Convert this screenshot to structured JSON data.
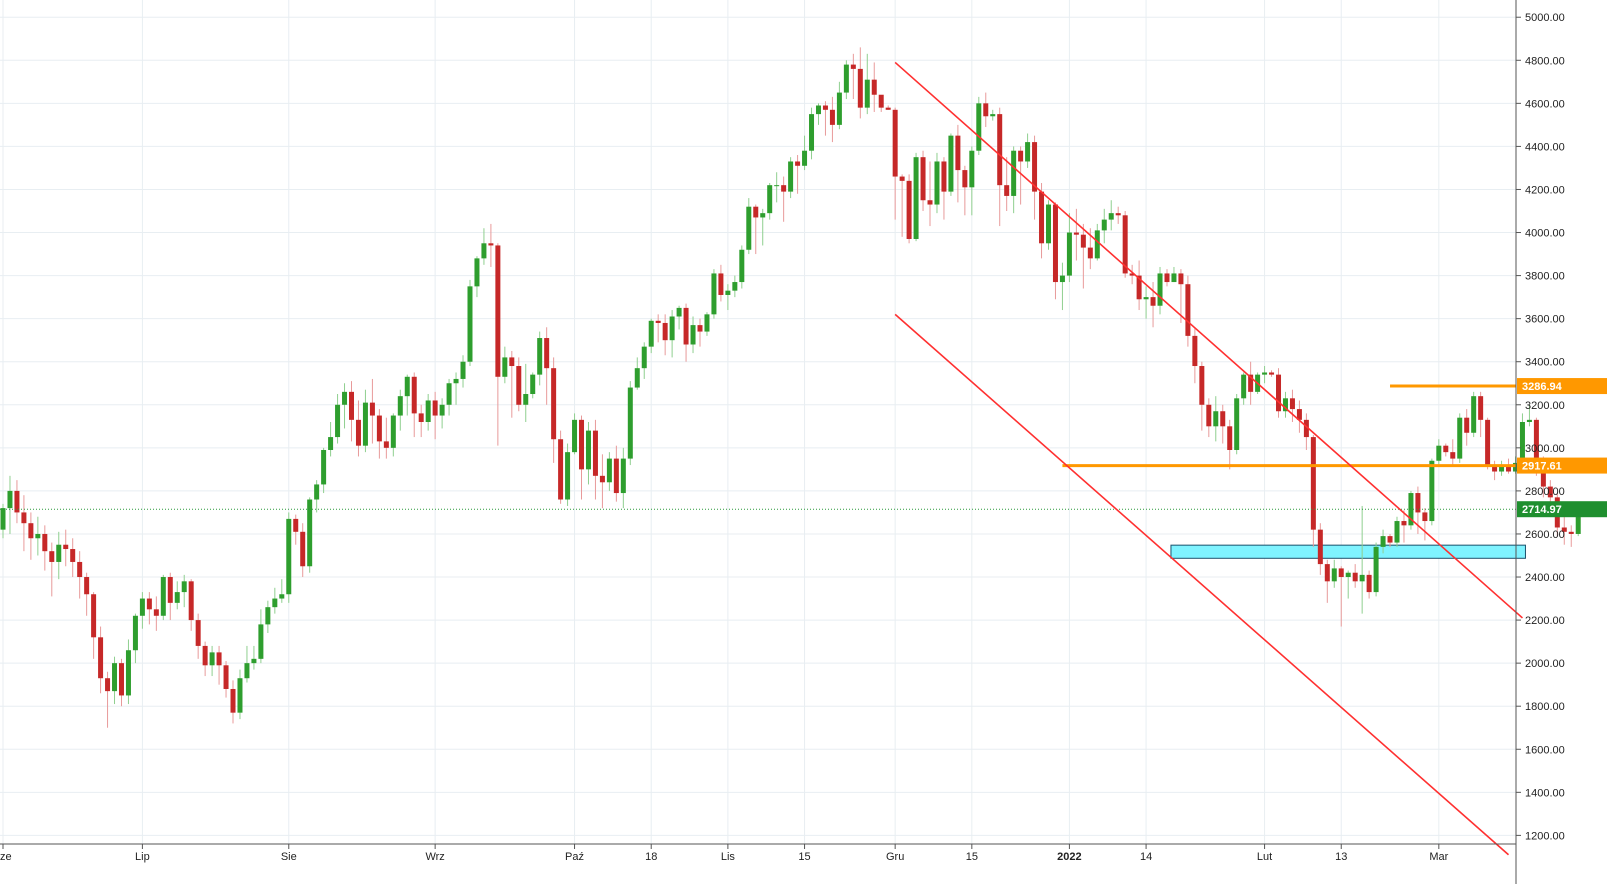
{
  "chart_data": {
    "type": "candlestick",
    "ylim": [
      1160,
      5080
    ],
    "y_ticks": [
      1200,
      1400,
      1600,
      1800,
      2000,
      2200,
      2400,
      2600,
      2800,
      3000,
      3200,
      3400,
      3600,
      3800,
      4000,
      4200,
      4400,
      4600,
      4800,
      5000
    ],
    "y_tick_labels": [
      "1200.00",
      "1400.00",
      "1600.00",
      "1800.00",
      "2000.00",
      "2200.00",
      "2400.00",
      "2600.00",
      "2800.00",
      "3000.00",
      "3200.00",
      "3400.00",
      "3600.00",
      "3800.00",
      "4000.00",
      "4200.00",
      "4400.00",
      "4600.00",
      "4800.00",
      "5000.00"
    ],
    "x_ticks": [
      {
        "label": "ze",
        "bar": 0,
        "bold": false
      },
      {
        "label": "Lip",
        "bar": 20,
        "bold": false
      },
      {
        "label": "Sie",
        "bar": 41,
        "bold": false
      },
      {
        "label": "Wrz",
        "bar": 62,
        "bold": false
      },
      {
        "label": "Paź",
        "bar": 82,
        "bold": false
      },
      {
        "label": "18",
        "bar": 93,
        "bold": false
      },
      {
        "label": "Lis",
        "bar": 104,
        "bold": false
      },
      {
        "label": "15",
        "bar": 115,
        "bold": false
      },
      {
        "label": "Gru",
        "bar": 128,
        "bold": false
      },
      {
        "label": "15",
        "bar": 139,
        "bold": false
      },
      {
        "label": "2022",
        "bar": 153,
        "bold": true
      },
      {
        "label": "14",
        "bar": 164,
        "bold": false
      },
      {
        "label": "Lut",
        "bar": 181,
        "bold": false
      },
      {
        "label": "13",
        "bar": 192,
        "bold": false
      },
      {
        "label": "Mar",
        "bar": 206,
        "bold": false
      }
    ],
    "candles": [
      [
        2620,
        2720,
        2580,
        2740
      ],
      [
        2720,
        2800,
        2600,
        2870
      ],
      [
        2800,
        2700,
        2650,
        2850
      ],
      [
        2700,
        2650,
        2520,
        2780
      ],
      [
        2650,
        2580,
        2480,
        2700
      ],
      [
        2580,
        2600,
        2500,
        2680
      ],
      [
        2600,
        2520,
        2430,
        2640
      ],
      [
        2520,
        2470,
        2310,
        2560
      ],
      [
        2470,
        2550,
        2390,
        2610
      ],
      [
        2550,
        2530,
        2450,
        2620
      ],
      [
        2530,
        2470,
        2400,
        2580
      ],
      [
        2470,
        2400,
        2300,
        2520
      ],
      [
        2400,
        2320,
        2220,
        2420
      ],
      [
        2320,
        2120,
        2020,
        2330
      ],
      [
        2120,
        1930,
        1860,
        2170
      ],
      [
        1930,
        1870,
        1700,
        1960
      ],
      [
        1870,
        2000,
        1810,
        2030
      ],
      [
        2000,
        1850,
        1800,
        2020
      ],
      [
        1850,
        2060,
        1810,
        2110
      ],
      [
        2060,
        2220,
        2000,
        2230
      ],
      [
        2220,
        2300,
        2160,
        2330
      ],
      [
        2300,
        2250,
        2180,
        2330
      ],
      [
        2250,
        2220,
        2150,
        2310
      ],
      [
        2220,
        2400,
        2200,
        2410
      ],
      [
        2400,
        2280,
        2200,
        2420
      ],
      [
        2280,
        2330,
        2250,
        2380
      ],
      [
        2330,
        2380,
        2260,
        2410
      ],
      [
        2380,
        2200,
        2150,
        2390
      ],
      [
        2200,
        2080,
        2020,
        2230
      ],
      [
        2080,
        1990,
        1940,
        2100
      ],
      [
        1990,
        2050,
        1940,
        2080
      ],
      [
        2050,
        1990,
        1900,
        2080
      ],
      [
        1990,
        1880,
        1840,
        2010
      ],
      [
        1880,
        1770,
        1720,
        1920
      ],
      [
        1770,
        1930,
        1740,
        1970
      ],
      [
        1930,
        2000,
        1910,
        2080
      ],
      [
        2000,
        2020,
        1970,
        2080
      ],
      [
        2020,
        2180,
        2000,
        2250
      ],
      [
        2180,
        2260,
        2140,
        2290
      ],
      [
        2260,
        2300,
        2230,
        2350
      ],
      [
        2300,
        2320,
        2280,
        2390
      ],
      [
        2320,
        2670,
        2280,
        2700
      ],
      [
        2670,
        2610,
        2550,
        2690
      ],
      [
        2610,
        2450,
        2400,
        2650
      ],
      [
        2450,
        2760,
        2420,
        2770
      ],
      [
        2760,
        2830,
        2700,
        2850
      ],
      [
        2830,
        2990,
        2790,
        3000
      ],
      [
        2990,
        3050,
        2960,
        3120
      ],
      [
        3050,
        3200,
        3020,
        3250
      ],
      [
        3200,
        3260,
        3090,
        3300
      ],
      [
        3260,
        3130,
        3030,
        3310
      ],
      [
        3130,
        3010,
        2960,
        3220
      ],
      [
        3010,
        3210,
        2980,
        3270
      ],
      [
        3210,
        3150,
        3020,
        3320
      ],
      [
        3150,
        3030,
        2950,
        3180
      ],
      [
        3030,
        3000,
        2950,
        3140
      ],
      [
        3000,
        3150,
        2960,
        3160
      ],
      [
        3150,
        3240,
        3080,
        3270
      ],
      [
        3240,
        3330,
        3150,
        3340
      ],
      [
        3330,
        3160,
        3050,
        3350
      ],
      [
        3160,
        3120,
        3050,
        3200
      ],
      [
        3120,
        3220,
        3080,
        3250
      ],
      [
        3220,
        3150,
        3040,
        3260
      ],
      [
        3150,
        3200,
        3090,
        3230
      ],
      [
        3200,
        3300,
        3150,
        3320
      ],
      [
        3300,
        3320,
        3200,
        3350
      ],
      [
        3320,
        3400,
        3280,
        3430
      ],
      [
        3400,
        3750,
        3380,
        3780
      ],
      [
        3750,
        3880,
        3700,
        3890
      ],
      [
        3880,
        3950,
        3850,
        4020
      ],
      [
        3950,
        3940,
        3840,
        4040
      ],
      [
        3940,
        3330,
        3010,
        3950
      ],
      [
        3330,
        3420,
        3300,
        3470
      ],
      [
        3420,
        3380,
        3140,
        3450
      ],
      [
        3380,
        3200,
        3170,
        3420
      ],
      [
        3200,
        3250,
        3120,
        3390
      ],
      [
        3250,
        3340,
        3230,
        3350
      ],
      [
        3340,
        3510,
        3290,
        3540
      ],
      [
        3510,
        3370,
        3200,
        3560
      ],
      [
        3370,
        3040,
        2930,
        3420
      ],
      [
        3040,
        2760,
        2740,
        3080
      ],
      [
        2760,
        2980,
        2730,
        3020
      ],
      [
        2980,
        3130,
        2970,
        3160
      ],
      [
        3130,
        2900,
        2760,
        3150
      ],
      [
        2900,
        3080,
        2830,
        3120
      ],
      [
        3080,
        2870,
        2760,
        3130
      ],
      [
        2870,
        2840,
        2720,
        2970
      ],
      [
        2840,
        2950,
        2800,
        2980
      ],
      [
        2950,
        2790,
        2750,
        3010
      ],
      [
        2790,
        2950,
        2720,
        3000
      ],
      [
        2950,
        3280,
        2920,
        3310
      ],
      [
        3280,
        3370,
        3270,
        3420
      ],
      [
        3370,
        3470,
        3320,
        3490
      ],
      [
        3470,
        3590,
        3440,
        3600
      ],
      [
        3590,
        3580,
        3490,
        3620
      ],
      [
        3580,
        3500,
        3430,
        3620
      ],
      [
        3500,
        3610,
        3420,
        3640
      ],
      [
        3610,
        3650,
        3550,
        3660
      ],
      [
        3650,
        3480,
        3400,
        3670
      ],
      [
        3480,
        3570,
        3440,
        3610
      ],
      [
        3570,
        3540,
        3470,
        3600
      ],
      [
        3540,
        3620,
        3520,
        3630
      ],
      [
        3620,
        3810,
        3600,
        3830
      ],
      [
        3810,
        3710,
        3680,
        3850
      ],
      [
        3710,
        3730,
        3640,
        3760
      ],
      [
        3730,
        3770,
        3700,
        3800
      ],
      [
        3770,
        3920,
        3740,
        3940
      ],
      [
        3920,
        4120,
        3900,
        4160
      ],
      [
        4120,
        4070,
        3900,
        4130
      ],
      [
        4070,
        4090,
        3940,
        4110
      ],
      [
        4090,
        4220,
        4060,
        4230
      ],
      [
        4220,
        4220,
        4140,
        4280
      ],
      [
        4220,
        4190,
        4050,
        4260
      ],
      [
        4190,
        4330,
        4160,
        4350
      ],
      [
        4330,
        4310,
        4180,
        4360
      ],
      [
        4310,
        4380,
        4290,
        4450
      ],
      [
        4380,
        4550,
        4340,
        4580
      ],
      [
        4550,
        4590,
        4500,
        4600
      ],
      [
        4590,
        4570,
        4450,
        4610
      ],
      [
        4570,
        4500,
        4420,
        4630
      ],
      [
        4500,
        4650,
        4480,
        4700
      ],
      [
        4650,
        4780,
        4620,
        4800
      ],
      [
        4780,
        4760,
        4620,
        4830
      ],
      [
        4760,
        4580,
        4530,
        4860
      ],
      [
        4580,
        4710,
        4550,
        4830
      ],
      [
        4710,
        4640,
        4560,
        4790
      ],
      [
        4640,
        4580,
        4560,
        4630
      ],
      [
        4580,
        4570,
        4570,
        4590
      ],
      [
        4570,
        4260,
        4060,
        4580
      ],
      [
        4260,
        4240,
        3980,
        4270
      ],
      [
        4240,
        3970,
        3950,
        4270
      ],
      [
        3970,
        4350,
        3960,
        4370
      ],
      [
        4350,
        4150,
        4100,
        4380
      ],
      [
        4150,
        4130,
        4030,
        4330
      ],
      [
        4130,
        4330,
        4090,
        4370
      ],
      [
        4330,
        4190,
        4060,
        4350
      ],
      [
        4190,
        4450,
        4170,
        4460
      ],
      [
        4450,
        4290,
        4140,
        4500
      ],
      [
        4290,
        4210,
        4080,
        4310
      ],
      [
        4210,
        4380,
        4080,
        4400
      ],
      [
        4380,
        4600,
        4360,
        4630
      ],
      [
        4600,
        4540,
        4490,
        4650
      ],
      [
        4540,
        4550,
        4520,
        4570
      ],
      [
        4550,
        4220,
        4030,
        4580
      ],
      [
        4220,
        4170,
        4100,
        4350
      ],
      [
        4170,
        4380,
        4090,
        4400
      ],
      [
        4380,
        4330,
        4130,
        4400
      ],
      [
        4330,
        4420,
        4300,
        4460
      ],
      [
        4420,
        4190,
        4060,
        4450
      ],
      [
        4190,
        3950,
        3880,
        4230
      ],
      [
        3950,
        4130,
        3920,
        4150
      ],
      [
        4130,
        3770,
        3690,
        4140
      ],
      [
        3770,
        3800,
        3640,
        3860
      ],
      [
        3800,
        4000,
        3770,
        4090
      ],
      [
        4000,
        3990,
        3870,
        4110
      ],
      [
        3990,
        3930,
        3740,
        4040
      ],
      [
        3930,
        3880,
        3830,
        4020
      ],
      [
        3880,
        4010,
        3870,
        4040
      ],
      [
        4010,
        4060,
        3950,
        4110
      ],
      [
        4060,
        4090,
        4010,
        4150
      ],
      [
        4090,
        4080,
        4040,
        4120
      ],
      [
        4080,
        3810,
        3790,
        4100
      ],
      [
        3810,
        3800,
        3760,
        3850
      ],
      [
        3800,
        3690,
        3640,
        3870
      ],
      [
        3690,
        3700,
        3600,
        3750
      ],
      [
        3700,
        3660,
        3560,
        3770
      ],
      [
        3660,
        3810,
        3620,
        3840
      ],
      [
        3810,
        3770,
        3750,
        3830
      ],
      [
        3770,
        3810,
        3770,
        3840
      ],
      [
        3810,
        3760,
        3580,
        3830
      ],
      [
        3760,
        3520,
        3470,
        3800
      ],
      [
        3520,
        3380,
        3300,
        3560
      ],
      [
        3380,
        3200,
        3080,
        3400
      ],
      [
        3200,
        3100,
        3050,
        3230
      ],
      [
        3100,
        3170,
        3030,
        3240
      ],
      [
        3170,
        3100,
        3020,
        3200
      ],
      [
        3100,
        2990,
        2900,
        3130
      ],
      [
        2990,
        3230,
        2970,
        3250
      ],
      [
        3230,
        3340,
        3200,
        3350
      ],
      [
        3340,
        3260,
        3200,
        3400
      ],
      [
        3260,
        3340,
        3250,
        3350
      ],
      [
        3340,
        3350,
        3300,
        3380
      ],
      [
        3350,
        3340,
        3330,
        3360
      ],
      [
        3340,
        3170,
        3140,
        3370
      ],
      [
        3170,
        3230,
        3140,
        3260
      ],
      [
        3230,
        3180,
        3120,
        3270
      ],
      [
        3180,
        3130,
        3070,
        3220
      ],
      [
        3130,
        3050,
        2990,
        3160
      ],
      [
        3050,
        2620,
        2540,
        3060
      ],
      [
        2620,
        2460,
        2410,
        2650
      ],
      [
        2460,
        2380,
        2280,
        2480
      ],
      [
        2380,
        2440,
        2350,
        2480
      ],
      [
        2440,
        2400,
        2170,
        2450
      ],
      [
        2400,
        2420,
        2300,
        2430
      ],
      [
        2420,
        2380,
        2350,
        2460
      ],
      [
        2380,
        2410,
        2230,
        2730
      ],
      [
        2410,
        2330,
        2300,
        2430
      ],
      [
        2330,
        2540,
        2310,
        2560
      ],
      [
        2540,
        2590,
        2510,
        2620
      ],
      [
        2590,
        2560,
        2540,
        2600
      ],
      [
        2560,
        2660,
        2540,
        2680
      ],
      [
        2660,
        2640,
        2560,
        2710
      ],
      [
        2640,
        2790,
        2620,
        2800
      ],
      [
        2790,
        2700,
        2600,
        2820
      ],
      [
        2700,
        2660,
        2570,
        2720
      ],
      [
        2660,
        2940,
        2640,
        2950
      ],
      [
        2940,
        3010,
        2920,
        3040
      ],
      [
        3010,
        2980,
        2960,
        3020
      ],
      [
        2980,
        2950,
        2920,
        3040
      ],
      [
        2950,
        3140,
        2930,
        3160
      ],
      [
        3140,
        3070,
        3010,
        3180
      ],
      [
        3070,
        3240,
        3050,
        3260
      ],
      [
        3240,
        3130,
        3050,
        3260
      ],
      [
        3130,
        2920,
        2900,
        3140
      ],
      [
        2920,
        2890,
        2850,
        2940
      ],
      [
        2890,
        2920,
        2870,
        2940
      ],
      [
        2920,
        2890,
        2880,
        2950
      ],
      [
        2890,
        2930,
        2880,
        2960
      ],
      [
        2930,
        3120,
        2910,
        3160
      ],
      [
        3120,
        3130,
        3100,
        3200
      ],
      [
        3130,
        2900,
        2870,
        3140
      ],
      [
        2900,
        2820,
        2770,
        2960
      ],
      [
        2820,
        2770,
        2700,
        2850
      ],
      [
        2770,
        2630,
        2590,
        2790
      ],
      [
        2630,
        2610,
        2550,
        2680
      ],
      [
        2610,
        2600,
        2540,
        2640
      ],
      [
        2600,
        2700,
        2590,
        2720
      ]
    ],
    "last_price": 2714.97,
    "last_price_label": "2714.97",
    "horizontal_levels": [
      {
        "value": 3286.94,
        "label": "3286.94",
        "from_bar": 199,
        "color": "#ff9800"
      },
      {
        "value": 2917.61,
        "label": "2917.61",
        "from_bar": 152,
        "color": "#ff9800"
      }
    ],
    "support_zone": {
      "from_bar": 168,
      "to_bar": 218,
      "low": 2487,
      "high": 2548,
      "color": "#7ff3ff"
    },
    "trendlines": [
      {
        "name": "upper-channel",
        "from": [
          128,
          4790
        ],
        "to": [
          218,
          2210
        ],
        "color": "#ff3030"
      },
      {
        "name": "lower-channel",
        "from": [
          128,
          3620
        ],
        "to": [
          216,
          1110
        ],
        "color": "#ff3030"
      }
    ],
    "colors": {
      "up": "#2e9e2e",
      "down": "#c62828",
      "wick_up": "#8fcf8f",
      "wick_down": "#e89a9a",
      "grid": "#e8eef2",
      "last_price_tag": "#1f8f2f",
      "level_tag": "#ff9800",
      "price_line": "#2a9a3a"
    }
  }
}
